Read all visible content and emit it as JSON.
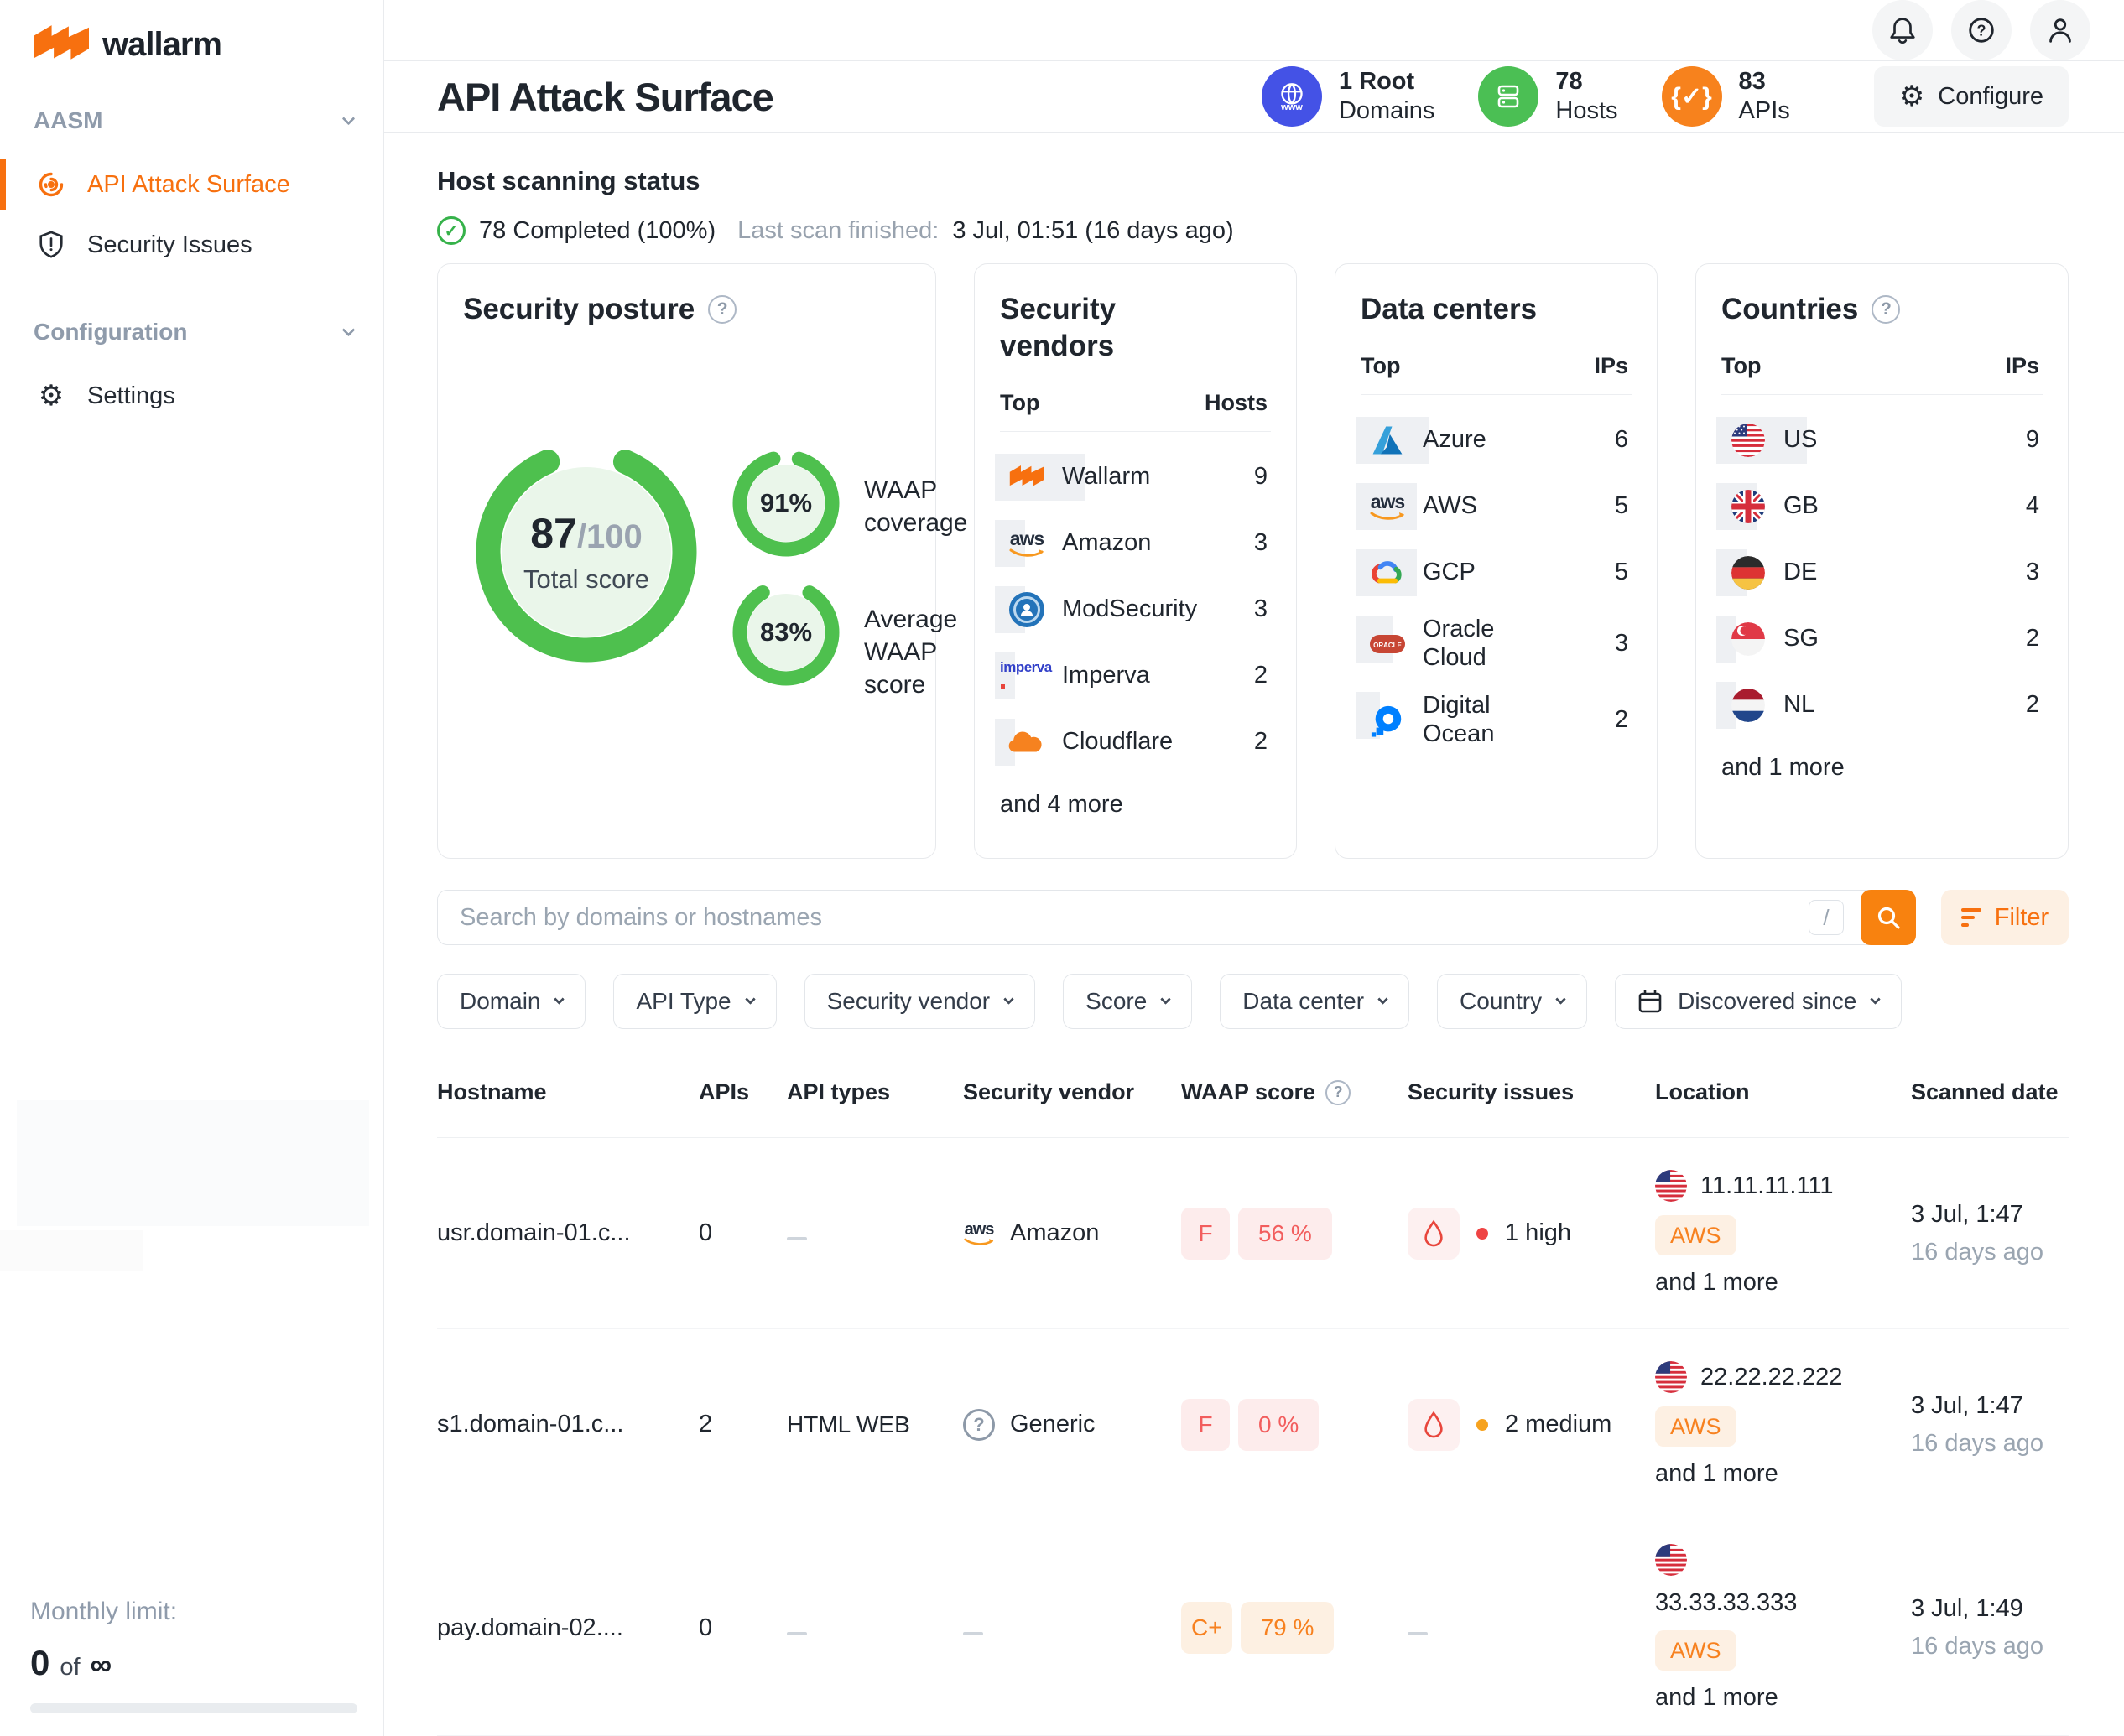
{
  "brand": {
    "name": "wallarm"
  },
  "sidebar": {
    "sections": [
      {
        "label": "AASM",
        "items": [
          {
            "label": "API Attack Surface",
            "active": true
          },
          {
            "label": "Security Issues",
            "active": false
          }
        ]
      },
      {
        "label": "Configuration",
        "items": [
          {
            "label": "Settings",
            "active": false
          }
        ]
      }
    ],
    "monthly_limit": {
      "label": "Monthly limit:",
      "used": "0",
      "of": "of",
      "total": "∞"
    }
  },
  "header": {
    "title": "API Attack Surface",
    "stats": [
      {
        "value": "1 Root",
        "label": "Domains",
        "icon": "globe-www",
        "color": "#4452e6"
      },
      {
        "value": "78",
        "label": "Hosts",
        "icon": "server",
        "color": "#4bbf54"
      },
      {
        "value": "83",
        "label": "APIs",
        "icon": "api-braces",
        "color": "#f7821d"
      }
    ],
    "configure": "Configure"
  },
  "scan": {
    "heading": "Host scanning status",
    "completed": "78 Completed (100%)",
    "last_label": "Last scan finished:",
    "last_value": "3 Jul, 01:51 (16 days ago)"
  },
  "posture": {
    "title": "Security posture",
    "total": {
      "value": "87",
      "max": "/100",
      "label": "Total score",
      "pct": 87
    },
    "gauges": [
      {
        "value": "91%",
        "pct": 91,
        "label": "WAAP coverage"
      },
      {
        "value": "83%",
        "pct": 83,
        "label": "Average WAAP score"
      }
    ]
  },
  "vendors": {
    "title": "Security vendors",
    "col_name": "Top",
    "col_value": "Hosts",
    "max": 9,
    "rows": [
      {
        "name": "Wallarm",
        "value": 9
      },
      {
        "name": "Amazon",
        "value": 3
      },
      {
        "name": "ModSecurity",
        "value": 3
      },
      {
        "name": "Imperva",
        "value": 2
      },
      {
        "name": "Cloudflare",
        "value": 2
      }
    ],
    "more": "and 4 more"
  },
  "datacenters": {
    "title": "Data centers",
    "col_name": "Top",
    "col_value": "IPs",
    "max": 6,
    "rows": [
      {
        "name": "Azure",
        "value": 6
      },
      {
        "name": "AWS",
        "value": 5
      },
      {
        "name": "GCP",
        "value": 5
      },
      {
        "name": "Oracle Cloud",
        "value": 3
      },
      {
        "name": "Digital Ocean",
        "value": 2
      }
    ]
  },
  "countries": {
    "title": "Countries",
    "col_name": "Top",
    "col_value": "IPs",
    "max": 9,
    "rows": [
      {
        "name": "US",
        "value": 9
      },
      {
        "name": "GB",
        "value": 4
      },
      {
        "name": "DE",
        "value": 3
      },
      {
        "name": "SG",
        "value": 2
      },
      {
        "name": "NL",
        "value": 2
      }
    ],
    "more": "and 1 more"
  },
  "search": {
    "placeholder": "Search by domains or hostnames",
    "shortcut": "/",
    "filter_label": "Filter"
  },
  "filters": [
    {
      "label": "Domain"
    },
    {
      "label": "API Type"
    },
    {
      "label": "Security vendor"
    },
    {
      "label": "Score"
    },
    {
      "label": "Data center"
    },
    {
      "label": "Country"
    },
    {
      "label": "Discovered since"
    }
  ],
  "table": {
    "columns": [
      "Hostname",
      "APIs",
      "API types",
      "Security vendor",
      "WAAP score",
      "Security issues",
      "Location",
      "Scanned date"
    ],
    "rows": [
      {
        "hostname": "usr.domain-01.c...",
        "apis": "0",
        "api_types": "",
        "vendor": {
          "name": "Amazon",
          "icon": "aws"
        },
        "score": {
          "grade": "F",
          "percent": "56 %",
          "theme": "red"
        },
        "issues": {
          "text": "1 high",
          "severity": "high"
        },
        "location": {
          "ip": "11.11.11.111",
          "badge": "AWS",
          "more": "and 1 more",
          "flag": "us"
        },
        "scanned": {
          "date": "3 Jul, 1:47",
          "ago": "16 days ago"
        }
      },
      {
        "hostname": "s1.domain-01.c...",
        "apis": "2",
        "api_types": "HTML WEB",
        "vendor": {
          "name": "Generic",
          "icon": "generic"
        },
        "score": {
          "grade": "F",
          "percent": "0 %",
          "theme": "red"
        },
        "issues": {
          "text": "2 medium",
          "severity": "medium"
        },
        "location": {
          "ip": "22.22.22.222",
          "badge": "AWS",
          "more": "and 1 more",
          "flag": "us"
        },
        "scanned": {
          "date": "3 Jul, 1:47",
          "ago": "16 days ago"
        }
      },
      {
        "hostname": "pay.domain-02....",
        "apis": "0",
        "api_types": "",
        "vendor": null,
        "score": {
          "grade": "C+",
          "percent": "79 %",
          "theme": "orange"
        },
        "issues": null,
        "location": {
          "ip": "33.33.33.333",
          "badge": "AWS",
          "more": "and 1 more",
          "flag": "us"
        },
        "scanned": {
          "date": "3 Jul, 1:49",
          "ago": "16 days ago"
        }
      }
    ]
  },
  "colors": {
    "accent": "#f7700f",
    "accent_bg": "#fdf0e3",
    "green": "#4ec04e",
    "blue": "#4452e6",
    "red": "#f25d5d",
    "red_bg": "#fdecec",
    "gray_text": "#8f9bab"
  }
}
